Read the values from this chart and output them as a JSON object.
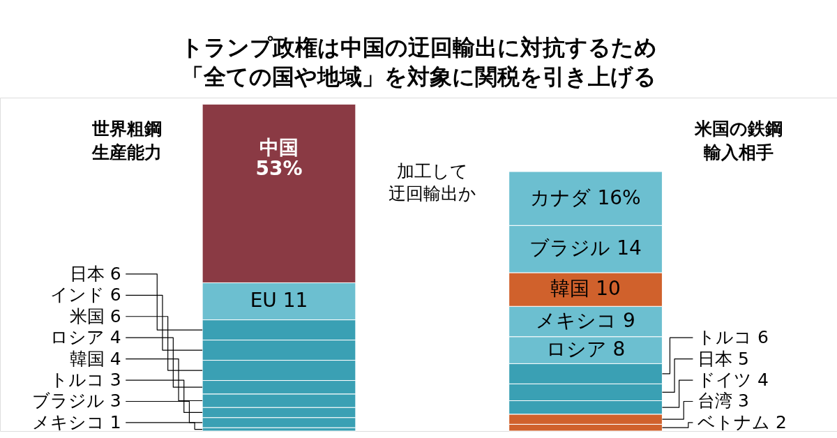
{
  "chart_data": {
    "type": "bar",
    "stacked": true,
    "title": "トランプ政権は中国の迂回輸出に対抗するため「全ての国や地域」を対象に関税を引き上げる",
    "categories": [
      "世界粗鋼生産能力",
      "米国の鉄鋼輸入相手"
    ],
    "annotations": [
      "加工して迂回輸出か"
    ],
    "series": [
      {
        "name": "メキシコ",
        "color": "#3aa0b4",
        "values": [
          1,
          null
        ],
        "value_labels": [
          "1",
          null
        ]
      },
      {
        "name": "ブラジル",
        "color": "#3aa0b4",
        "values": [
          3,
          null
        ],
        "value_labels": [
          "3",
          null
        ]
      },
      {
        "name": "トルコ",
        "color": "#3aa0b4",
        "values": [
          3,
          null
        ],
        "value_labels": [
          "3",
          null
        ]
      },
      {
        "name": "韓国",
        "color": "#3aa0b4",
        "values": [
          4,
          null
        ],
        "value_labels": [
          "4",
          null
        ]
      },
      {
        "name": "ロシア",
        "color": "#3aa0b4",
        "values": [
          4,
          null
        ],
        "value_labels": [
          "4",
          null
        ]
      },
      {
        "name": "米国",
        "color": "#3aa0b4",
        "values": [
          6,
          null
        ],
        "value_labels": [
          "6",
          null
        ]
      },
      {
        "name": "インド",
        "color": "#3aa0b4",
        "values": [
          6,
          null
        ],
        "value_labels": [
          "6",
          null
        ]
      },
      {
        "name": "日本",
        "color": "#3aa0b4",
        "values": [
          6,
          null
        ],
        "value_labels": [
          "6",
          null
        ]
      },
      {
        "name": "EU",
        "color": "#6cbfd0",
        "values": [
          11,
          null
        ],
        "value_labels": [
          "11",
          null
        ]
      },
      {
        "name": "中国",
        "color": "#8a3a44",
        "values": [
          53,
          null
        ],
        "value_labels": [
          "53%",
          null
        ]
      },
      {
        "name": "ベトナム",
        "color": "#d0612c",
        "values": [
          null,
          2
        ],
        "value_labels": [
          null,
          "2"
        ]
      },
      {
        "name": "台湾",
        "color": "#d0612c",
        "values": [
          null,
          3
        ],
        "value_labels": [
          null,
          "3"
        ]
      },
      {
        "name": "ドイツ",
        "color": "#3aa0b4",
        "values": [
          null,
          4
        ],
        "value_labels": [
          null,
          "4"
        ]
      },
      {
        "name": "日本",
        "color": "#3aa0b4",
        "values": [
          null,
          5
        ],
        "value_labels": [
          null,
          "5"
        ]
      },
      {
        "name": "トルコ",
        "color": "#3aa0b4",
        "values": [
          null,
          6
        ],
        "value_labels": [
          null,
          "6"
        ]
      },
      {
        "name": "ロシア",
        "color": "#6cbfd0",
        "values": [
          null,
          8
        ],
        "value_labels": [
          null,
          "8"
        ]
      },
      {
        "name": "メキシコ",
        "color": "#6cbfd0",
        "values": [
          null,
          9
        ],
        "value_labels": [
          null,
          "9"
        ]
      },
      {
        "name": "韓国",
        "color": "#d0612c",
        "values": [
          null,
          10
        ],
        "value_labels": [
          null,
          "10"
        ]
      },
      {
        "name": "ブラジル",
        "color": "#6cbfd0",
        "values": [
          null,
          14
        ],
        "value_labels": [
          null,
          "14"
        ]
      },
      {
        "name": "カナダ",
        "color": "#6cbfd0",
        "values": [
          null,
          16
        ],
        "value_labels": [
          null,
          "16%"
        ]
      }
    ]
  }
}
